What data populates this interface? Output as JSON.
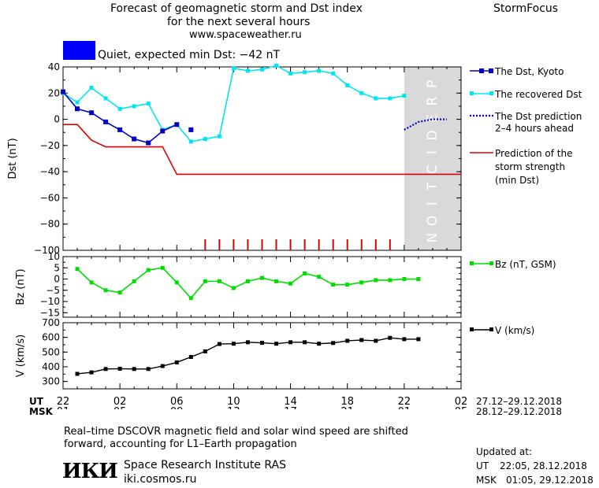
{
  "header": {
    "title_line1": "Forecast of geomagnetic storm and Dst index",
    "title_line2": "for the next several hours",
    "url": "www.spaceweather.ru",
    "brand": "StormFocus"
  },
  "status": {
    "text": "Quiet, expected min Dst: −42 nT",
    "color": "#0000ff"
  },
  "legend": {
    "dst_kyoto": "The Dst, Kyoto",
    "dst_recovered": "The recovered Dst",
    "dst_prediction_1": "The Dst prediction",
    "dst_prediction_2": "2–4 hours ahead",
    "storm_1": "Prediction of the",
    "storm_2": "storm strength",
    "storm_3": "(min Dst)",
    "bz": "Bz (nT, GSM)",
    "v": "V (km/s)"
  },
  "time_axis": {
    "ut_label": "UT",
    "msk_label": "MSK",
    "ut_ticks": [
      "22",
      "02",
      "06",
      "10",
      "14",
      "18",
      "22",
      "02"
    ],
    "msk_ticks": [
      "01",
      "05",
      "09",
      "13",
      "17",
      "21",
      "01",
      "05"
    ],
    "ut_range": "27.12–29.12.2018",
    "msk_range": "28.12–29.12.2018"
  },
  "footer": {
    "note_line1": "Real–time DSCOVR magnetic field and solar wind speed are shifted",
    "note_line2": "forward, accounting for L1–Earth propagation",
    "logo": "ИКИ",
    "institute": "Space Research Institute RAS",
    "site": "iki.cosmos.ru",
    "updated_label": "Updated at:",
    "updated_ut_label": "UT",
    "updated_ut": "22:05, 28.12.2018",
    "updated_msk_label": "MSK",
    "updated_msk": "01:05, 29.12.2018"
  },
  "prediction_word": "PREDICTION",
  "colors": {
    "kyoto": "#0000cc",
    "recovered": "#00e5ee",
    "prediction": "#0000cc",
    "storm": "#dd0000",
    "bz": "#00dd00",
    "v": "#000000",
    "prediction_zone": "#d9d9d9"
  },
  "chart_data": [
    {
      "type": "line",
      "ylabel": "Dst (nT)",
      "ylim": [
        -100,
        40
      ],
      "yticks": [
        40,
        20,
        0,
        -20,
        -40,
        -60,
        -80,
        -100
      ],
      "xlim": [
        0,
        28
      ],
      "series": [
        {
          "name": "The Dst, Kyoto",
          "x": [
            0,
            1,
            2,
            3,
            4,
            5,
            6,
            7,
            8
          ],
          "values": [
            21,
            8,
            5,
            -2,
            -8,
            -15,
            -18,
            -9,
            -4
          ]
        },
        {
          "name": "The Dst, Kyoto (latest)",
          "x": [
            9
          ],
          "values": [
            -8
          ]
        },
        {
          "name": "The recovered Dst",
          "x": [
            0,
            1,
            2,
            3,
            4,
            5,
            6,
            7,
            8,
            9,
            10,
            11,
            12,
            13,
            14,
            15,
            16,
            17,
            18,
            19,
            20,
            21,
            22,
            23,
            24
          ],
          "values": [
            20,
            13,
            24,
            16,
            8,
            10,
            12,
            -8,
            -4,
            -17,
            -15,
            -13,
            39,
            37,
            38,
            41,
            35,
            36,
            37,
            35,
            26,
            20,
            16,
            16,
            18
          ]
        },
        {
          "name": "The Dst prediction 2–4 hours ahead",
          "x": [
            24,
            25,
            26,
            27
          ],
          "values": [
            -8,
            -2,
            0,
            0
          ]
        },
        {
          "name": "Prediction of the storm strength (min Dst)",
          "x": [
            0,
            1,
            2,
            3,
            4,
            5,
            6,
            7,
            8,
            9,
            10,
            11,
            12,
            13,
            14,
            15,
            16,
            17,
            18,
            19,
            20,
            21,
            22,
            23,
            24,
            25,
            26,
            27,
            28
          ],
          "values": [
            -4,
            -4,
            -16,
            -21,
            -21,
            -21,
            -21,
            -21,
            -42,
            -42,
            -42,
            -42,
            -42,
            -42,
            -42,
            -42,
            -42,
            -42,
            -42,
            -42,
            -42,
            -42,
            -42,
            -42,
            -42,
            -42,
            -42,
            -42,
            -42
          ]
        }
      ],
      "storm_ticks_x": [
        10,
        11,
        12,
        13,
        14,
        15,
        16,
        17,
        18,
        19,
        20,
        21,
        22,
        23
      ]
    },
    {
      "type": "line",
      "ylabel": "Bz (nT)",
      "ylim": [
        -17,
        10
      ],
      "yticks": [
        10,
        5,
        0,
        -5,
        -10,
        -15
      ],
      "series": [
        {
          "name": "Bz (nT, GSM)",
          "x": [
            1,
            2,
            3,
            4,
            5,
            6,
            7,
            8,
            9,
            10,
            11,
            12,
            13,
            14,
            15,
            16,
            17,
            18,
            19,
            20,
            21,
            22,
            23,
            24,
            25
          ],
          "values": [
            4.5,
            -1.5,
            -5,
            -6,
            -1,
            4,
            5,
            -1.5,
            -8.5,
            -1,
            -1,
            -4,
            -1,
            0.5,
            -1,
            -2,
            2.5,
            1,
            -2.5,
            -2.5,
            -1.5,
            -0.5,
            -0.5,
            0,
            0
          ]
        }
      ]
    },
    {
      "type": "line",
      "ylabel": "V (km/s)",
      "ylim": [
        250,
        700
      ],
      "yticks": [
        700,
        600,
        500,
        400,
        300
      ],
      "series": [
        {
          "name": "V (km/s)",
          "x": [
            1,
            2,
            3,
            4,
            5,
            6,
            7,
            8,
            9,
            10,
            11,
            12,
            13,
            14,
            15,
            16,
            17,
            18,
            19,
            20,
            21,
            22,
            23,
            24,
            25
          ],
          "values": [
            352,
            362,
            385,
            387,
            385,
            385,
            405,
            430,
            467,
            505,
            555,
            557,
            567,
            563,
            557,
            567,
            567,
            557,
            562,
            577,
            582,
            577,
            597,
            588,
            588
          ]
        }
      ]
    }
  ]
}
